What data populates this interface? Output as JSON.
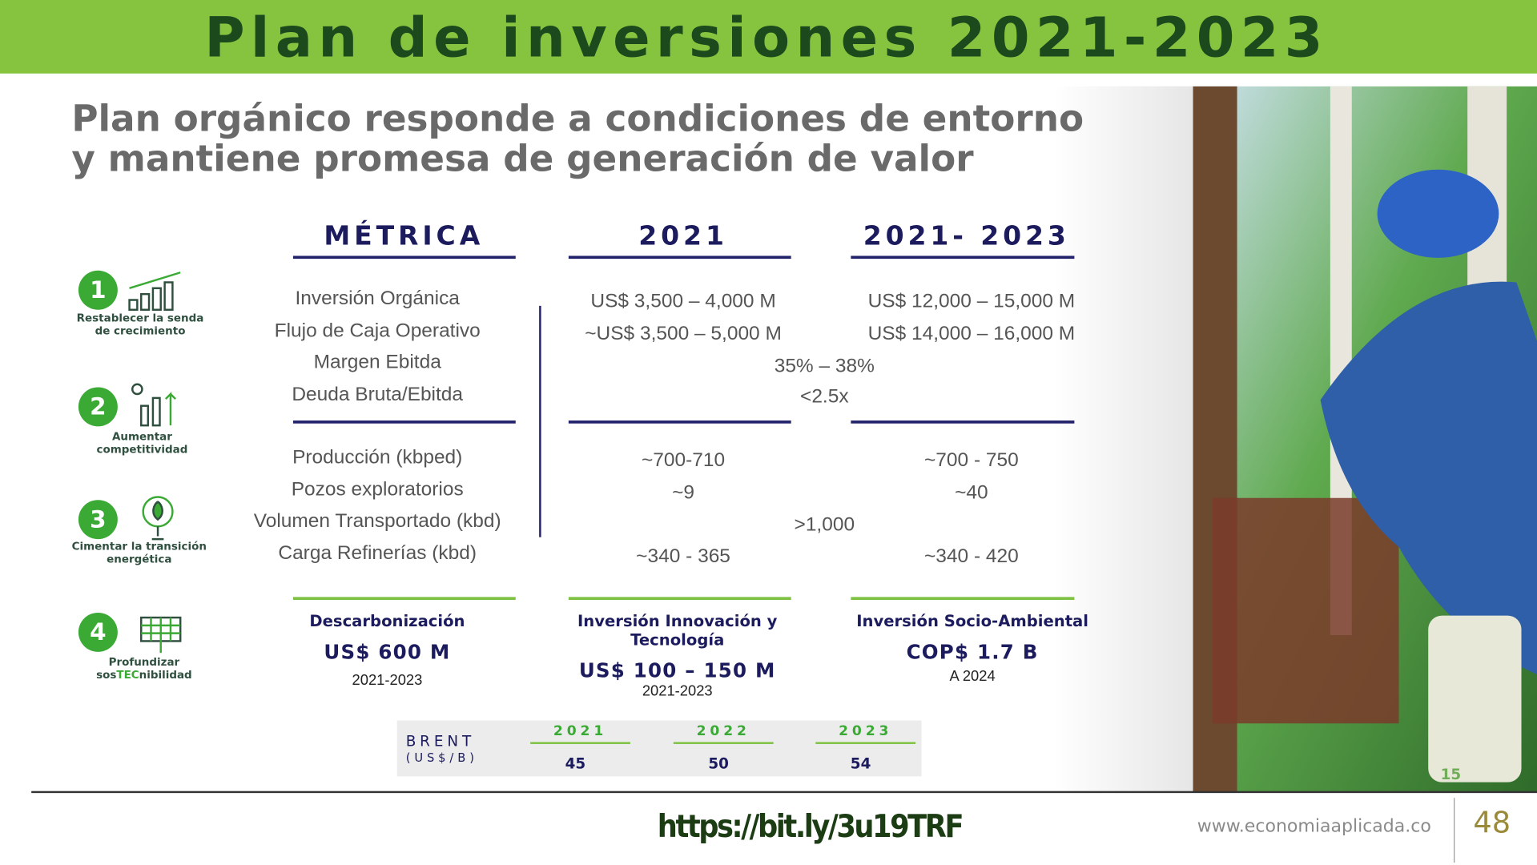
{
  "header": {
    "title": "Plan de inversiones 2021-2023"
  },
  "slide": {
    "heading": [
      "Plan orgánico responde a condiciones de entorno",
      "y mantiene promesa de generación de valor"
    ],
    "columns": [
      "MÉTRICA",
      "2021",
      "2021- 2023"
    ],
    "pillars": [
      {
        "number": "1",
        "label": [
          "Restablecer la senda",
          "de crecimiento"
        ]
      },
      {
        "number": "2",
        "label": [
          "Aumentar",
          "competitividad"
        ]
      },
      {
        "number": "3",
        "label": [
          "Cimentar la transición",
          "energética"
        ]
      },
      {
        "number": "4",
        "label": [
          "Profundizar",
          "sos",
          "TEC",
          "nibilidad"
        ]
      }
    ],
    "financial": [
      {
        "metric": "Inversión Orgánica",
        "y2021": "US$ 3,500 – 4,000 M",
        "y2021_2023": "US$ 12,000 – 15,000 M"
      },
      {
        "metric": "Flujo de Caja Operativo",
        "y2021": "~US$ 3,500 – 5,000 M",
        "y2021_2023": "US$ 14,000  – 16,000 M"
      },
      {
        "metric": "Margen Ebitda",
        "both": "35% – 38%"
      },
      {
        "metric": "Deuda Bruta/Ebitda",
        "both": "<2.5x"
      }
    ],
    "operational": [
      {
        "metric": "Producción (kbped)",
        "y2021": "~700-710",
        "y2021_2023": "~700 - 750"
      },
      {
        "metric": "Pozos exploratorios",
        "y2021": "~9",
        "y2021_2023": "~40"
      },
      {
        "metric": "Volumen Transportado (kbd)",
        "both": ">1,000"
      },
      {
        "metric": "Carga Refinerías (kbd)",
        "y2021": "~340 - 365",
        "y2021_2023": "~340 - 420"
      }
    ],
    "investments": [
      {
        "title": [
          "Descarbonización"
        ],
        "amount": "US$ 600 M",
        "period": "2021-2023"
      },
      {
        "title": [
          "Inversión Innovación y",
          "Tecnología"
        ],
        "amount": "US$ 100 – 150 M",
        "period": "2021-2023"
      },
      {
        "title": [
          "Inversión Socio-Ambiental"
        ],
        "amount": "COP$ 1.7 B",
        "period": "A 2024"
      }
    ],
    "brent": {
      "label": "BRENT",
      "unit": "(US$/B)",
      "years": [
        "2021",
        "2022",
        "2023"
      ],
      "values": [
        45,
        50,
        54
      ]
    },
    "slide_number": "15"
  },
  "footer": {
    "url": "https://bit.ly/3u19TRF",
    "website": "www.economiaaplicada.co",
    "page": "48"
  }
}
